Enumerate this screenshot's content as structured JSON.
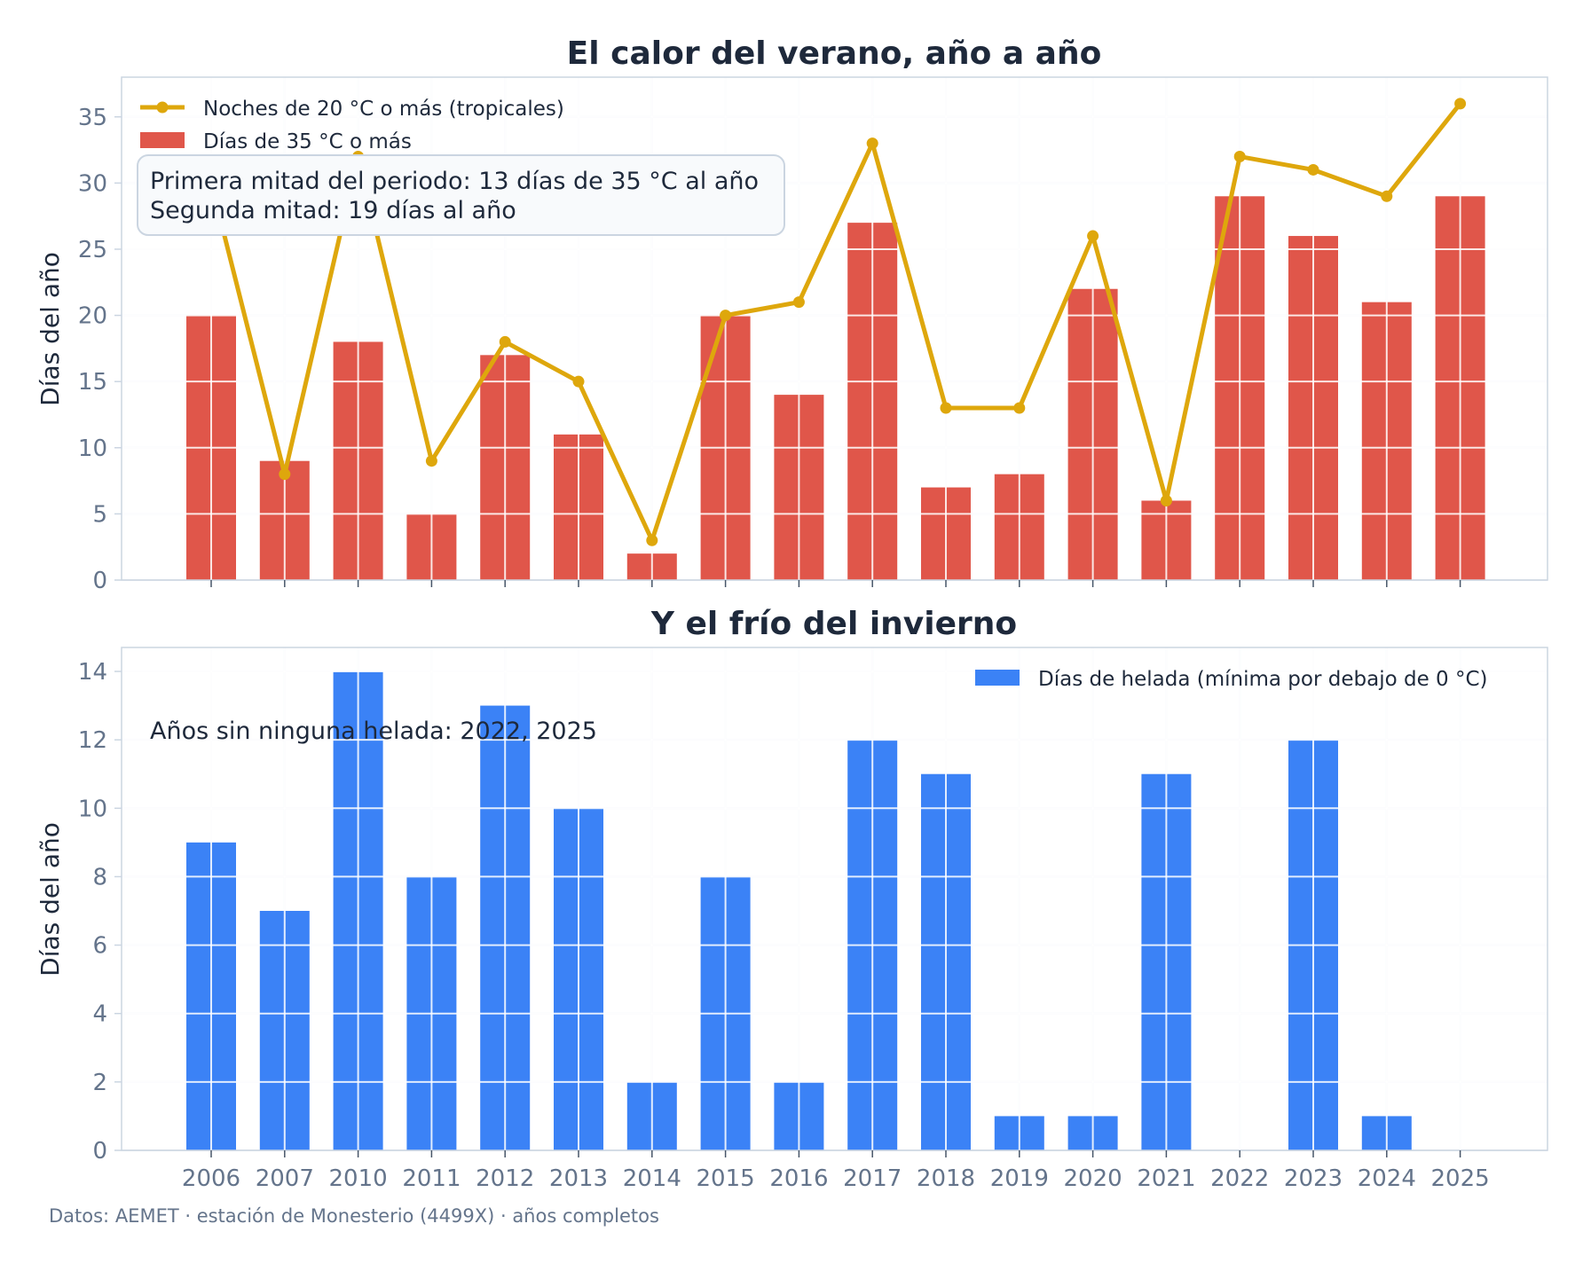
{
  "source_note": "Datos: AEMET · estación de Monesterio (4499X) · años completos",
  "colors": {
    "hot_days_bar": "#e0564a",
    "tropical_nights_line": "#dea70c",
    "frost_days_bar": "#3b82f6",
    "grid": "#eef2f7",
    "axis": "#cbd5e1",
    "title": "#1e293b",
    "tick": "#64748b"
  },
  "chart_data": [
    {
      "type": "bar",
      "title": "El calor del verano, año a año",
      "ylabel": "Días del año",
      "xlabel": "",
      "ylim": [
        0,
        38
      ],
      "yticks": [
        0,
        5,
        10,
        15,
        20,
        25,
        30,
        35
      ],
      "grid": true,
      "legend_position": "top-left",
      "categories": [
        "2006",
        "2007",
        "2010",
        "2011",
        "2012",
        "2013",
        "2014",
        "2015",
        "2016",
        "2017",
        "2018",
        "2019",
        "2020",
        "2021",
        "2022",
        "2023",
        "2024",
        "2025"
      ],
      "series": [
        {
          "name": "Días de 35 °C o más",
          "type": "bar",
          "values": [
            20,
            9,
            18,
            5,
            17,
            11,
            2,
            20,
            14,
            27,
            7,
            8,
            22,
            6,
            29,
            26,
            21,
            29
          ]
        },
        {
          "name": "Noches de 20 °C o más (tropicales)",
          "type": "line",
          "values": [
            30,
            8,
            32,
            9,
            18,
            15,
            3,
            20,
            21,
            33,
            13,
            13,
            26,
            6,
            32,
            31,
            29,
            36
          ]
        }
      ],
      "annotation": [
        "Primera mitad del periodo: 13 días de 35 °C al año",
        "Segunda mitad: 19 días al año"
      ]
    },
    {
      "type": "bar",
      "title": "Y el frío del invierno",
      "ylabel": "Días del año",
      "xlabel": "",
      "ylim": [
        0,
        14.7
      ],
      "yticks": [
        0,
        2,
        4,
        6,
        8,
        10,
        12,
        14
      ],
      "grid": true,
      "legend_position": "top-right",
      "categories": [
        "2006",
        "2007",
        "2010",
        "2011",
        "2012",
        "2013",
        "2014",
        "2015",
        "2016",
        "2017",
        "2018",
        "2019",
        "2020",
        "2021",
        "2022",
        "2023",
        "2024",
        "2025"
      ],
      "series": [
        {
          "name": "Días de helada (mínima por debajo de 0 °C)",
          "type": "bar",
          "values": [
            9,
            7,
            14,
            8,
            13,
            10,
            2,
            8,
            2,
            12,
            11,
            1,
            1,
            11,
            0,
            12,
            1,
            0
          ]
        }
      ],
      "annotation": [
        "Años sin ninguna helada: 2022, 2025"
      ]
    }
  ]
}
